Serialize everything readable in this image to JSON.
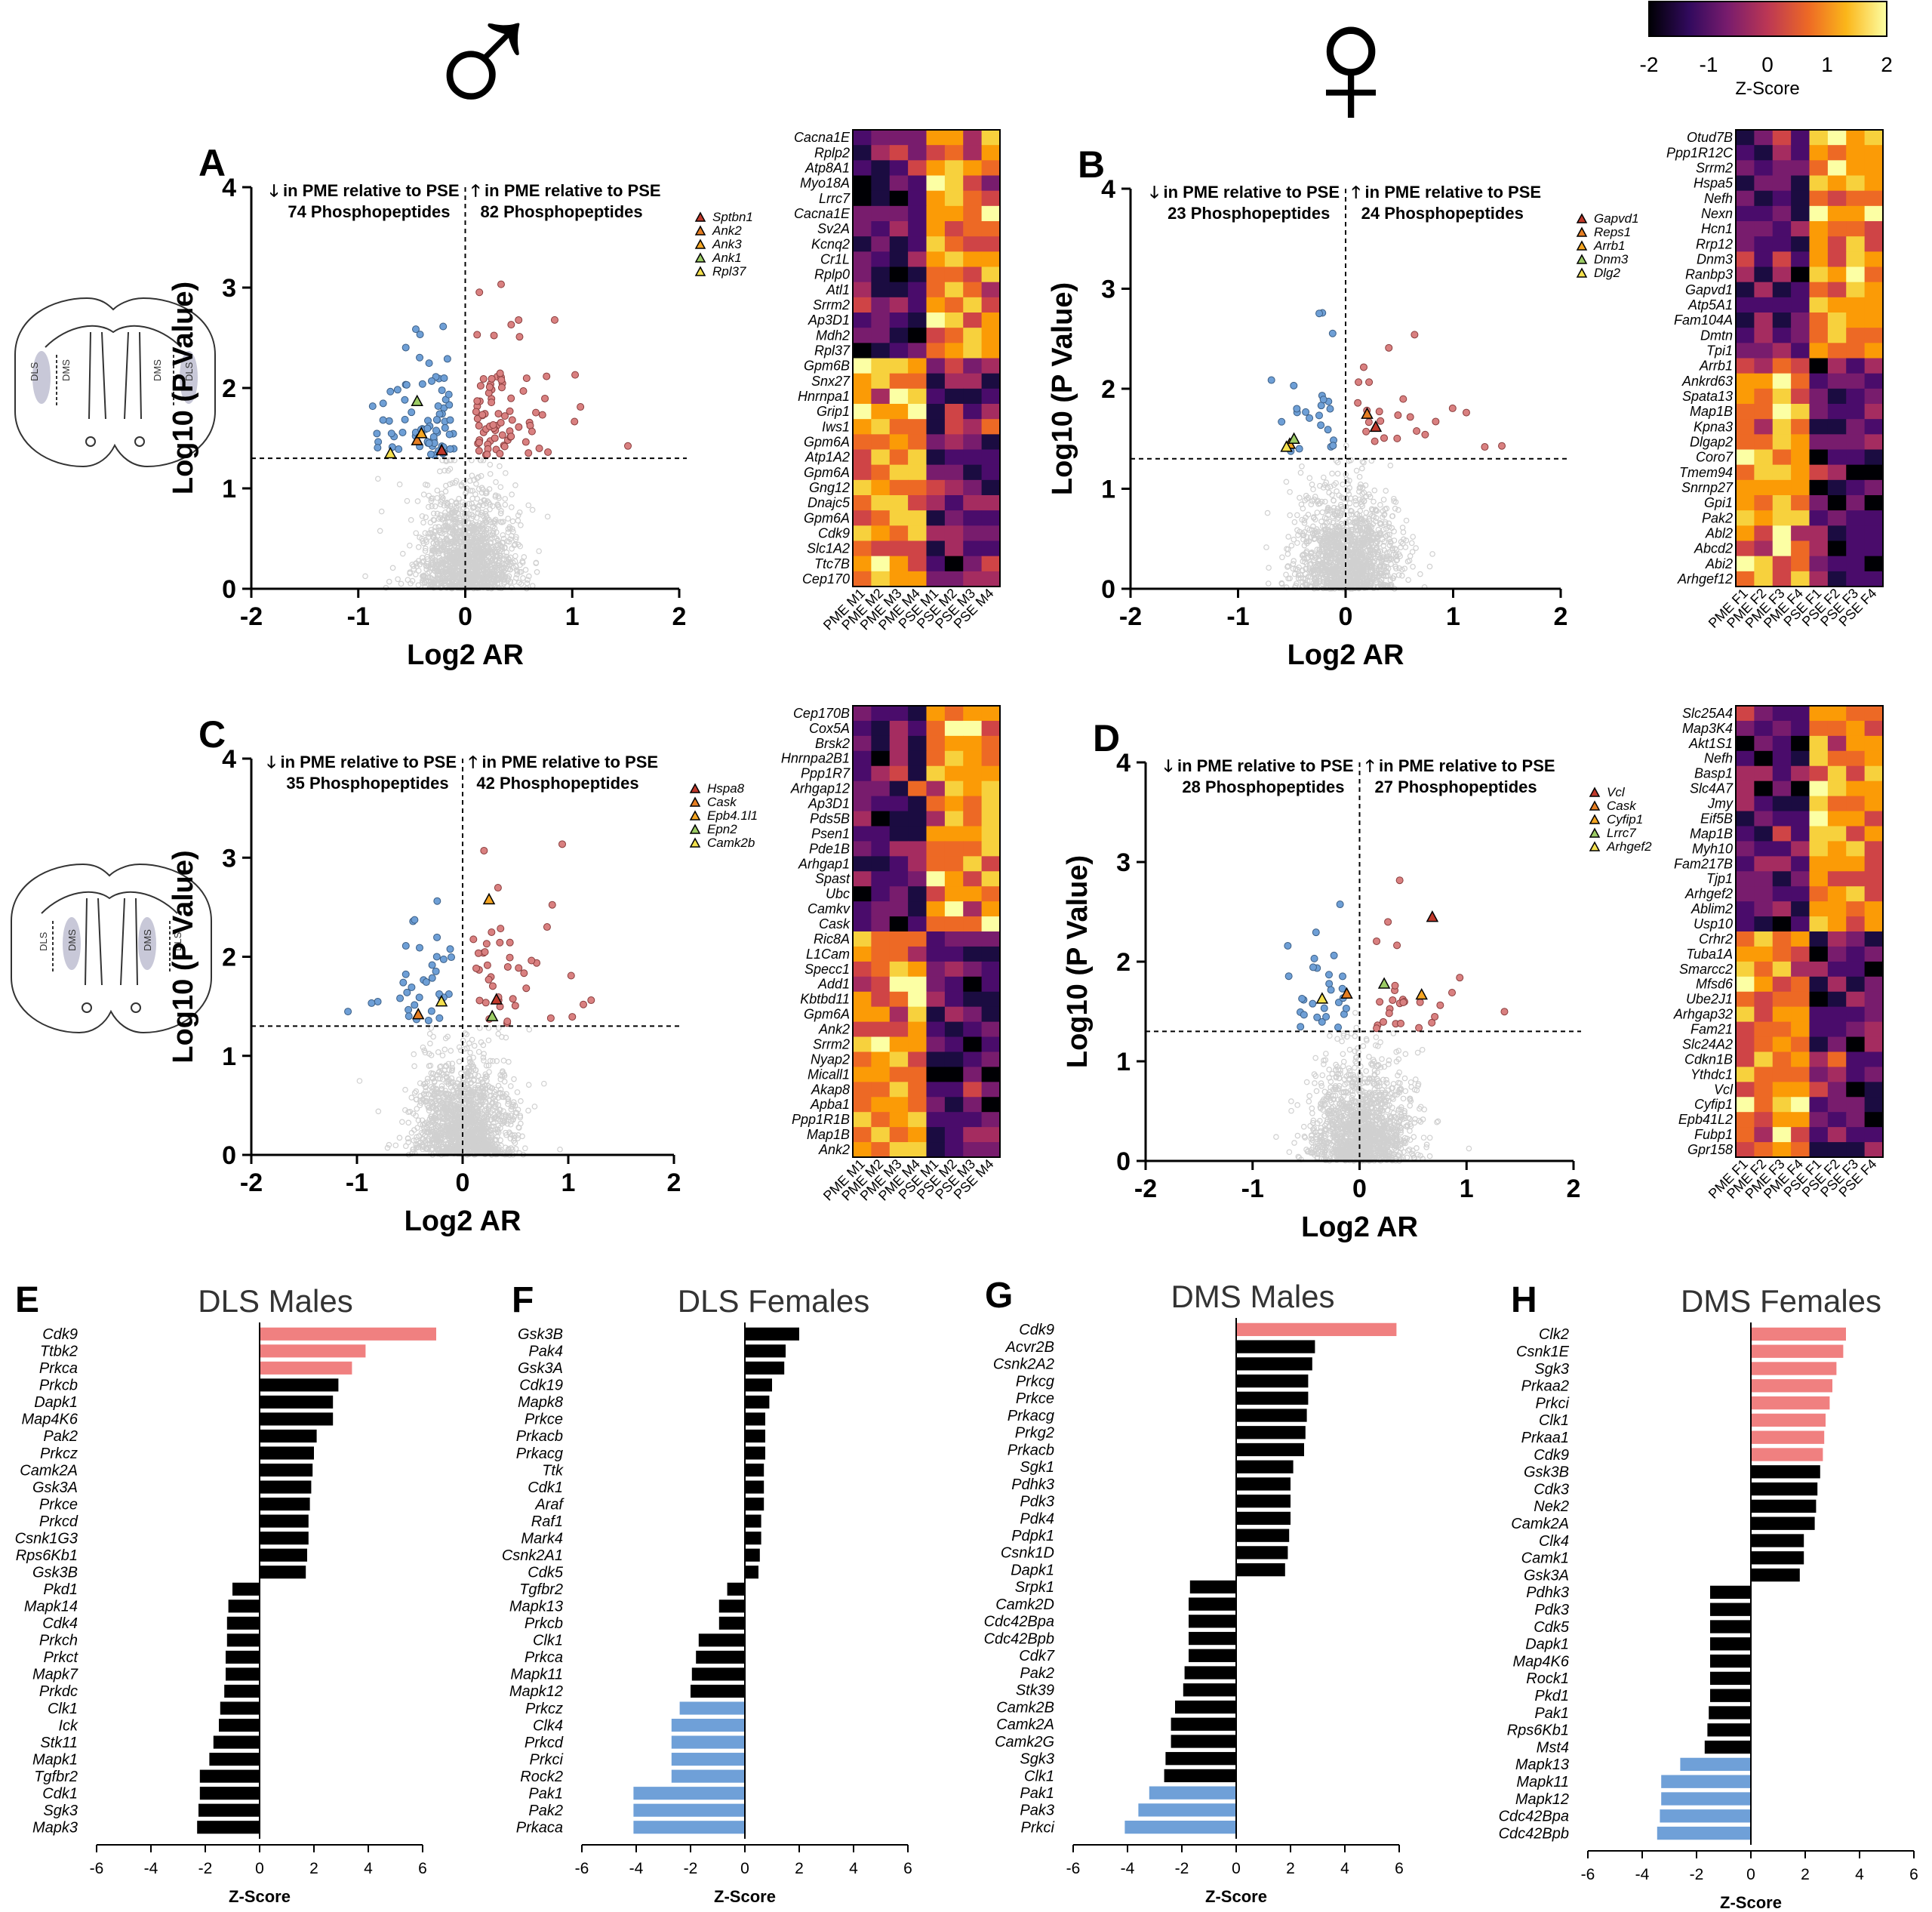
{
  "symbols": {
    "male": "♂",
    "female": "♀"
  },
  "colorbar": {
    "label": "Z-Score",
    "ticks": [
      "-2",
      "-1",
      "0",
      "1",
      "2"
    ],
    "colors": [
      "#000004",
      "#320a5e",
      "#781c6d",
      "#bc3754",
      "#ed6925",
      "#fbb61a",
      "#fcffa4"
    ]
  },
  "colors": {
    "up": "#d98080",
    "down": "#6e9fd6",
    "ns": "#d0d0d0",
    "bar_up": "#f08080",
    "bar_down": "#6fa0d8",
    "bar_mid": "#000000"
  },
  "chart_data": [
    {
      "id": "A",
      "type": "scatter",
      "panel_label": "A",
      "sex": "male",
      "region": "DLS",
      "xlabel": "Log2 AR",
      "ylabel": "Log10 (P  Value)",
      "xlim": [
        -2,
        2
      ],
      "ylim": [
        0,
        4
      ],
      "xticks": [
        "-2",
        "-1",
        "0",
        "1",
        "2"
      ],
      "yticks": [
        "0",
        "1",
        "2",
        "3",
        "4"
      ],
      "threshold": 1.3,
      "annot_down": "in PME relative to PSE",
      "annot_up": "in PME relative to PSE",
      "count_down": "74 Phosphopeptides",
      "count_up": "82 Phosphopeptides",
      "n_down": 74,
      "n_up": 82,
      "highlights": [
        {
          "name": "Sptbn1",
          "color": "#c0392b",
          "x": -0.22,
          "y": 1.38
        },
        {
          "name": "Ank2",
          "color": "#e67e22",
          "x": -0.45,
          "y": 1.48
        },
        {
          "name": "Ank3",
          "color": "#f5a623",
          "x": -0.41,
          "y": 1.55
        },
        {
          "name": "Ank1",
          "color": "#9ccc65",
          "x": -0.45,
          "y": 1.87
        },
        {
          "name": "Rpl37",
          "color": "#f4e04d",
          "x": -0.7,
          "y": 1.35
        }
      ]
    },
    {
      "id": "B",
      "type": "scatter",
      "panel_label": "B",
      "sex": "female",
      "region": "DLS",
      "xlabel": "Log2 AR",
      "ylabel": "Log10 (P  Value)",
      "xlim": [
        -2,
        2
      ],
      "ylim": [
        0,
        4
      ],
      "xticks": [
        "-2",
        "-1",
        "0",
        "1",
        "2"
      ],
      "yticks": [
        "0",
        "1",
        "2",
        "3",
        "4"
      ],
      "threshold": 1.3,
      "annot_down": "in PME relative to PSE",
      "annot_up": "in PME relative to PSE",
      "count_down": "23 Phosphopeptides",
      "count_up": "24 Phosphopeptides",
      "n_down": 23,
      "n_up": 24,
      "highlights": [
        {
          "name": "Gapvd1",
          "color": "#c0392b",
          "x": 0.28,
          "y": 1.62
        },
        {
          "name": "Reps1",
          "color": "#e67e22",
          "x": 0.2,
          "y": 1.75
        },
        {
          "name": "Arrb1",
          "color": "#f5a623",
          "x": -0.52,
          "y": 1.45
        },
        {
          "name": "Dnm3",
          "color": "#9ccc65",
          "x": -0.48,
          "y": 1.5
        },
        {
          "name": "Dlg2",
          "color": "#f4e04d",
          "x": -0.55,
          "y": 1.42
        }
      ]
    },
    {
      "id": "C",
      "type": "scatter",
      "panel_label": "C",
      "sex": "male",
      "region": "DMS",
      "xlabel": "Log2 AR",
      "ylabel": "Log10 (P  Value)",
      "xlim": [
        -2,
        2
      ],
      "ylim": [
        0,
        4
      ],
      "xticks": [
        "-2",
        "-1",
        "0",
        "1",
        "2"
      ],
      "yticks": [
        "0",
        "1",
        "2",
        "3",
        "4"
      ],
      "threshold": 1.3,
      "annot_down": "in PME relative to PSE",
      "annot_up": "in PME relative to PSE",
      "count_down": "35 Phosphopeptides",
      "count_up": "42 Phosphopeptides",
      "n_down": 35,
      "n_up": 42,
      "highlights": [
        {
          "name": "Hspa8",
          "color": "#c0392b",
          "x": 0.32,
          "y": 1.57
        },
        {
          "name": "Cask",
          "color": "#e67e22",
          "x": -0.42,
          "y": 1.42
        },
        {
          "name": "Epb4.1l1",
          "color": "#f5a623",
          "x": 0.25,
          "y": 2.58
        },
        {
          "name": "Epn2",
          "color": "#9ccc65",
          "x": 0.28,
          "y": 1.4
        },
        {
          "name": "Camk2b",
          "color": "#f4e04d",
          "x": -0.2,
          "y": 1.55
        }
      ]
    },
    {
      "id": "D",
      "type": "scatter",
      "panel_label": "D",
      "sex": "female",
      "region": "DMS",
      "xlabel": "Log2 AR",
      "ylabel": "Log10 (P  Value)",
      "xlim": [
        -2,
        2
      ],
      "ylim": [
        0,
        4
      ],
      "xticks": [
        "-2",
        "-1",
        "0",
        "1",
        "2"
      ],
      "yticks": [
        "0",
        "1",
        "2",
        "3",
        "4"
      ],
      "threshold": 1.3,
      "annot_down": "in PME relative to PSE",
      "annot_up": "in PME relative to PSE",
      "count_down": "28 Phosphopeptides",
      "count_up": "27 Phosphopeptides",
      "n_down": 28,
      "n_up": 27,
      "highlights": [
        {
          "name": "Vcl",
          "color": "#c0392b",
          "x": 0.68,
          "y": 2.45
        },
        {
          "name": "Cask",
          "color": "#e67e22",
          "x": -0.12,
          "y": 1.68
        },
        {
          "name": "Cyfip1",
          "color": "#f5a623",
          "x": 0.58,
          "y": 1.67
        },
        {
          "name": "Lrrc7",
          "color": "#9ccc65",
          "x": 0.23,
          "y": 1.78
        },
        {
          "name": "Arhgef2",
          "color": "#f4e04d",
          "x": -0.35,
          "y": 1.63
        }
      ]
    },
    {
      "id": "A-heat",
      "type": "heatmap",
      "rows": [
        "Cacna1E",
        "Rplp2",
        "Atp8A1",
        "Myo18A",
        "Lrrc7",
        "Cacna1E",
        "Sv2A",
        "Kcnq2",
        "Cr1L",
        "Rplp0",
        "Atl1",
        "Srrm2",
        "Ap3D1",
        "Mdh2",
        "Rpl37",
        "Gpm6B",
        "Snx27",
        "Hnrnpa1",
        "Grip1",
        "Iws1",
        "Gpm6A",
        "Atp1A2",
        "Gpm6A",
        "Gng12",
        "Dnajc5",
        "Gpm6A",
        "Cdk9",
        "Slc1A2",
        "Ttc7B",
        "Cep170"
      ],
      "columns": [
        "PME M1",
        "PME M2",
        "PME M3",
        "PME M4",
        "PSE M1",
        "PSE M2",
        "PSE M3",
        "PSE M4"
      ],
      "group_split": 15
    },
    {
      "id": "B-heat",
      "type": "heatmap",
      "rows": [
        "Otud7B",
        "Ppp1R12C",
        "Srrm2",
        "Hspa5",
        "Nefh",
        "Nexn",
        "Hcn1",
        "Rrp12",
        "Dnm3",
        "Ranbp3",
        "Gapvd1",
        "Atp5A1",
        "Fam104A",
        "Dmtn",
        "Tpi1",
        "Arrb1",
        "Ankrd63",
        "Spata13",
        "Map1B",
        "Kpna3",
        "Dlgap2",
        "Coro7",
        "Tmem94",
        "Snrnp27",
        "Gpi1",
        "Pak2",
        "Abl2",
        "Abcd2",
        "Abi2",
        "Arhgef12"
      ],
      "columns": [
        "PME F1",
        "PME F2",
        "PME F3",
        "PME F4",
        "PSE F1",
        "PSE F2",
        "PSE F3",
        "PSE F4"
      ],
      "group_split": 15
    },
    {
      "id": "C-heat",
      "type": "heatmap",
      "rows": [
        "Cep170B",
        "Cox5A",
        "Brsk2",
        "Hnrnpa2B1",
        "Ppp1R7",
        "Arhgap12",
        "Ap3D1",
        "Pds5B",
        "Psen1",
        "Pde1B",
        "Arhgap1",
        "Spast",
        "Ubc",
        "Camkv",
        "Cask",
        "Ric8A",
        "L1Cam",
        "Specc1",
        "Add1",
        "Kbtbd11",
        "Gpm6A",
        "Ank2",
        "Srrm2",
        "Nyap2",
        "Micall1",
        "Akap8",
        "Apba1",
        "Ppp1R1B",
        "Map1B",
        "Ank2"
      ],
      "columns": [
        "PME M1",
        "PME M2",
        "PME M3",
        "PME M4",
        "PSE M1",
        "PSE M2",
        "PSE M3",
        "PSE M4"
      ],
      "group_split": 15
    },
    {
      "id": "D-heat",
      "type": "heatmap",
      "rows": [
        "Slc25A4",
        "Map3K4",
        "Akt1S1",
        "Nefh",
        "Basp1",
        "Slc4A7",
        "Jmy",
        "Eif5B",
        "Map1B",
        "Myh10",
        "Fam217B",
        "Tjp1",
        "Arhgef2",
        "Ablim2",
        "Usp10",
        "Crhr2",
        "Tuba1A",
        "Smarcc2",
        "Mfsd6",
        "Ube2J1",
        "Arhgap32",
        "Fam21",
        "Slc24A2",
        "Cdkn1B",
        "Ythdc1",
        "Vcl",
        "Cyfip1",
        "Epb41L2",
        "Fubp1",
        "Gpr158"
      ],
      "columns": [
        "PME F1",
        "PME F2",
        "PME F3",
        "PME F4",
        "PSE F1",
        "PSE F2",
        "PSE F3",
        "PSE F4"
      ],
      "group_split": 15
    },
    {
      "id": "E",
      "type": "bar",
      "orientation": "horizontal",
      "panel_label": "E",
      "title": "DLS Males",
      "xlabel": "Z-Score",
      "xlim": [
        -6,
        6
      ],
      "xticks": [
        "-6",
        "-4",
        "-2",
        "0",
        "2",
        "4",
        "6"
      ],
      "categories": [
        "Cdk9",
        "Ttbk2",
        "Prkca",
        "Prkcb",
        "Dapk1",
        "Map4K6",
        "Pak2",
        "Prkcz",
        "Camk2A",
        "Gsk3A",
        "Prkce",
        "Prkcd",
        "Csnk1G3",
        "Rps6Kb1",
        "Gsk3B",
        "Pkd1",
        "Mapk14",
        "Cdk4",
        "Prkch",
        "Prkct",
        "Mapk7",
        "Prkdc",
        "Clk1",
        "Ick",
        "Stk11",
        "Mapk1",
        "Tgfbr2",
        "Cdk1",
        "Sgk3",
        "Mapk3"
      ],
      "values": [
        6.5,
        3.9,
        3.4,
        2.9,
        2.7,
        2.7,
        2.1,
        2.0,
        1.95,
        1.9,
        1.85,
        1.8,
        1.8,
        1.75,
        1.7,
        -1.0,
        -1.15,
        -1.2,
        -1.2,
        -1.25,
        -1.25,
        -1.3,
        -1.45,
        -1.5,
        -1.7,
        -1.85,
        -2.2,
        -2.2,
        -2.25,
        -2.3
      ],
      "highlight": [
        "up",
        "up",
        "up",
        "mid",
        "mid",
        "mid",
        "mid",
        "mid",
        "mid",
        "mid",
        "mid",
        "mid",
        "mid",
        "mid",
        "mid",
        "mid",
        "mid",
        "mid",
        "mid",
        "mid",
        "mid",
        "mid",
        "mid",
        "mid",
        "mid",
        "mid",
        "mid",
        "mid",
        "mid",
        "mid"
      ]
    },
    {
      "id": "F",
      "type": "bar",
      "orientation": "horizontal",
      "panel_label": "F",
      "title": "DLS Females",
      "xlabel": "Z-Score",
      "xlim": [
        -6,
        6
      ],
      "xticks": [
        "-6",
        "-4",
        "-2",
        "0",
        "2",
        "4",
        "6"
      ],
      "categories": [
        "Gsk3B",
        "Pak4",
        "Gsk3A",
        "Cdk19",
        "Mapk8",
        "Prkce",
        "Prkacb",
        "Prkacg",
        "Ttk",
        "Cdk1",
        "Araf",
        "Raf1",
        "Mark4",
        "Csnk2A1",
        "Cdk5",
        "Tgfbr2",
        "Mapk13",
        "Prkcb",
        "Clk1",
        "Prkca",
        "Mapk11",
        "Mapk12",
        "Prkcz",
        "Clk4",
        "Prkcd",
        "Prkci",
        "Rock2",
        "Pak1",
        "Pak2",
        "Prkaca"
      ],
      "values": [
        2.0,
        1.5,
        1.45,
        1.0,
        0.9,
        0.75,
        0.75,
        0.75,
        0.7,
        0.7,
        0.7,
        0.6,
        0.6,
        0.55,
        0.5,
        -0.65,
        -0.95,
        -0.95,
        -1.7,
        -1.8,
        -1.95,
        -2.0,
        -2.4,
        -2.7,
        -2.7,
        -2.7,
        -2.7,
        -4.1,
        -4.1,
        -4.1
      ],
      "highlight": [
        "mid",
        "mid",
        "mid",
        "mid",
        "mid",
        "mid",
        "mid",
        "mid",
        "mid",
        "mid",
        "mid",
        "mid",
        "mid",
        "mid",
        "mid",
        "mid",
        "mid",
        "mid",
        "mid",
        "mid",
        "mid",
        "mid",
        "down",
        "down",
        "down",
        "down",
        "down",
        "down",
        "down",
        "down"
      ]
    },
    {
      "id": "G",
      "type": "bar",
      "orientation": "horizontal",
      "panel_label": "G",
      "title": "DMS Males",
      "xlabel": "Z-Score",
      "xlim": [
        -6,
        6
      ],
      "xticks": [
        "-6",
        "-4",
        "-2",
        "0",
        "2",
        "4",
        "6"
      ],
      "categories": [
        "Cdk9",
        "Acvr2B",
        "Csnk2A2",
        "Prkcg",
        "Prkce",
        "Prkacg",
        "Prkg2",
        "Prkacb",
        "Sgk1",
        "Pdhk3",
        "Pdk3",
        "Pdk4",
        "Pdpk1",
        "Csnk1D",
        "Dapk1",
        "Srpk1",
        "Camk2D",
        "Cdc42Bpa",
        "Cdc42Bpb",
        "Cdk7",
        "Pak2",
        "Stk39",
        "Camk2B",
        "Camk2A",
        "Camk2G",
        "Sgk3",
        "Clk1",
        "Pak1",
        "Pak3",
        "Prkci"
      ],
      "values": [
        5.9,
        2.9,
        2.8,
        2.65,
        2.65,
        2.6,
        2.55,
        2.5,
        2.1,
        2.0,
        2.0,
        2.0,
        1.95,
        1.9,
        1.8,
        -1.7,
        -1.75,
        -1.75,
        -1.75,
        -1.75,
        -1.9,
        -1.95,
        -2.25,
        -2.4,
        -2.4,
        -2.6,
        -2.65,
        -3.2,
        -3.6,
        -4.1
      ],
      "highlight": [
        "up",
        "mid",
        "mid",
        "mid",
        "mid",
        "mid",
        "mid",
        "mid",
        "mid",
        "mid",
        "mid",
        "mid",
        "mid",
        "mid",
        "mid",
        "mid",
        "mid",
        "mid",
        "mid",
        "mid",
        "mid",
        "mid",
        "mid",
        "mid",
        "mid",
        "mid",
        "mid",
        "down",
        "down",
        "down"
      ]
    },
    {
      "id": "H",
      "type": "bar",
      "orientation": "horizontal",
      "panel_label": "H",
      "title": "DMS Females",
      "xlabel": "Z-Score",
      "xlim": [
        -6,
        6
      ],
      "xticks": [
        "-6",
        "-4",
        "-2",
        "0",
        "2",
        "4",
        "6"
      ],
      "categories": [
        "Clk2",
        "Csnk1E",
        "Sgk3",
        "Prkaa2",
        "Prkci",
        "Clk1",
        "Prkaa1",
        "Cdk9",
        "Gsk3B",
        "Cdk3",
        "Nek2",
        "Camk2A",
        "Clk4",
        "Camk1",
        "Gsk3A",
        "Pdhk3",
        "Pdk3",
        "Cdk5",
        "Dapk1",
        "Map4K6",
        "Rock1",
        "Pkd1",
        "Pak1",
        "Rps6Kb1",
        "Mst4",
        "Mapk13",
        "Mapk11",
        "Mapk12",
        "Cdc42Bpa",
        "Cdc42Bpb"
      ],
      "values": [
        3.5,
        3.4,
        3.15,
        3.0,
        2.9,
        2.75,
        2.7,
        2.65,
        2.55,
        2.45,
        2.4,
        2.35,
        1.95,
        1.95,
        1.8,
        -1.5,
        -1.5,
        -1.5,
        -1.5,
        -1.5,
        -1.5,
        -1.5,
        -1.55,
        -1.6,
        -1.7,
        -2.6,
        -3.3,
        -3.3,
        -3.35,
        -3.45
      ],
      "highlight": [
        "up",
        "up",
        "up",
        "up",
        "up",
        "up",
        "up",
        "up",
        "mid",
        "mid",
        "mid",
        "mid",
        "mid",
        "mid",
        "mid",
        "mid",
        "mid",
        "mid",
        "mid",
        "mid",
        "mid",
        "mid",
        "mid",
        "mid",
        "mid",
        "down",
        "down",
        "down",
        "down",
        "down"
      ]
    }
  ]
}
